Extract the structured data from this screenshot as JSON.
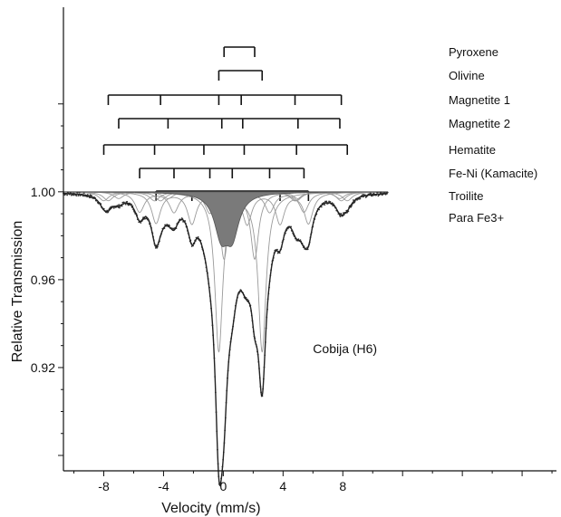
{
  "chart_data": {
    "type": "line",
    "title": "",
    "xlabel": "Velocity (mm/s)",
    "ylabel": "Relative Transmission",
    "xlim": [
      -10.7,
      22.3
    ],
    "ylim": [
      0.873,
      1.084
    ],
    "x_ticks": [
      -8,
      -4,
      0,
      4,
      8
    ],
    "x_tick_labels": [
      "-8",
      "-4",
      "0",
      "4",
      "8"
    ],
    "y_ticks": [
      0.92,
      0.96,
      1.0
    ],
    "y_tick_labels": [
      "0.92",
      "0.96",
      "1.00"
    ],
    "grid": false,
    "legend": "none",
    "annotation": "Cobija (H6)",
    "baseline": 1.0,
    "sites": [
      {
        "name": "Pyroxene",
        "lines": [
          0.05,
          2.1
        ],
        "depth": 0.0,
        "width": 0.35
      },
      {
        "name": "Olivine",
        "lines": [
          -0.3,
          2.6
        ],
        "depth": 0.0,
        "width": 0.35
      },
      {
        "name": "Magnetite 1",
        "lines": [
          -7.7,
          -4.2,
          -0.3,
          1.2,
          4.8,
          7.9
        ],
        "depth": 0.0,
        "width": 0.35
      },
      {
        "name": "Magnetite 2",
        "lines": [
          -7.0,
          -3.7,
          -0.1,
          1.3,
          5.0,
          7.8
        ],
        "depth": 0.0,
        "width": 0.35
      },
      {
        "name": "Hematite",
        "lines": [
          -8.0,
          -4.6,
          -1.3,
          1.4,
          4.9,
          8.3
        ],
        "depth": 0.0,
        "width": 0.35
      },
      {
        "name": "Fe-Ni (Kamacite)",
        "lines": [
          -5.6,
          -3.3,
          -0.9,
          0.6,
          3.1,
          5.4
        ],
        "depth": 0.0,
        "width": 0.35
      },
      {
        "name": "Troilite",
        "lines": [
          -4.5,
          -2.1,
          0.0,
          1.6,
          3.8,
          5.7
        ],
        "depth": 0.0,
        "width": 0.35
      },
      {
        "name": "Para Fe3+",
        "lines": [
          -0.15,
          0.6
        ],
        "depth": 0.0,
        "width": 0.35
      }
    ],
    "fit_components": [
      {
        "site": "Pyroxene",
        "positions": [
          0.05,
          2.1
        ],
        "depth": 0.03,
        "width": 0.32
      },
      {
        "site": "Olivine",
        "positions": [
          -0.3,
          2.6
        ],
        "depth": 0.072,
        "width": 0.32
      },
      {
        "site": "Magnetite 1",
        "positions": [
          -7.7,
          -4.2,
          -0.3,
          1.2,
          4.8,
          7.9
        ],
        "depth": 0.004,
        "width": 0.4
      },
      {
        "site": "Magnetite 2",
        "positions": [
          -7.0,
          -3.7,
          -0.1,
          1.3,
          5.0,
          7.8
        ],
        "depth": 0.003,
        "width": 0.4
      },
      {
        "site": "Hematite",
        "positions": [
          -8.0,
          -4.6,
          -1.3,
          1.4,
          4.9,
          8.3
        ],
        "depth": 0.004,
        "width": 0.4
      },
      {
        "site": "Fe-Ni (Kamacite)",
        "positions": [
          -5.6,
          -3.3,
          -0.9,
          0.6,
          3.1,
          5.4
        ],
        "depth": 0.009,
        "width": 0.38
      },
      {
        "site": "Troilite",
        "positions": [
          -4.5,
          -2.1,
          0.0,
          1.6,
          3.8,
          5.7
        ],
        "depth": 0.014,
        "width": 0.36
      },
      {
        "site": "Para Fe3+",
        "positions": [
          -0.15,
          0.6
        ],
        "depth": 0.018,
        "width": 0.55,
        "shaded": true
      }
    ],
    "colors": {
      "envelope": "#222222",
      "components": "#9a9a9a",
      "shaded": "#7a7a7a",
      "points": "#333333"
    }
  }
}
